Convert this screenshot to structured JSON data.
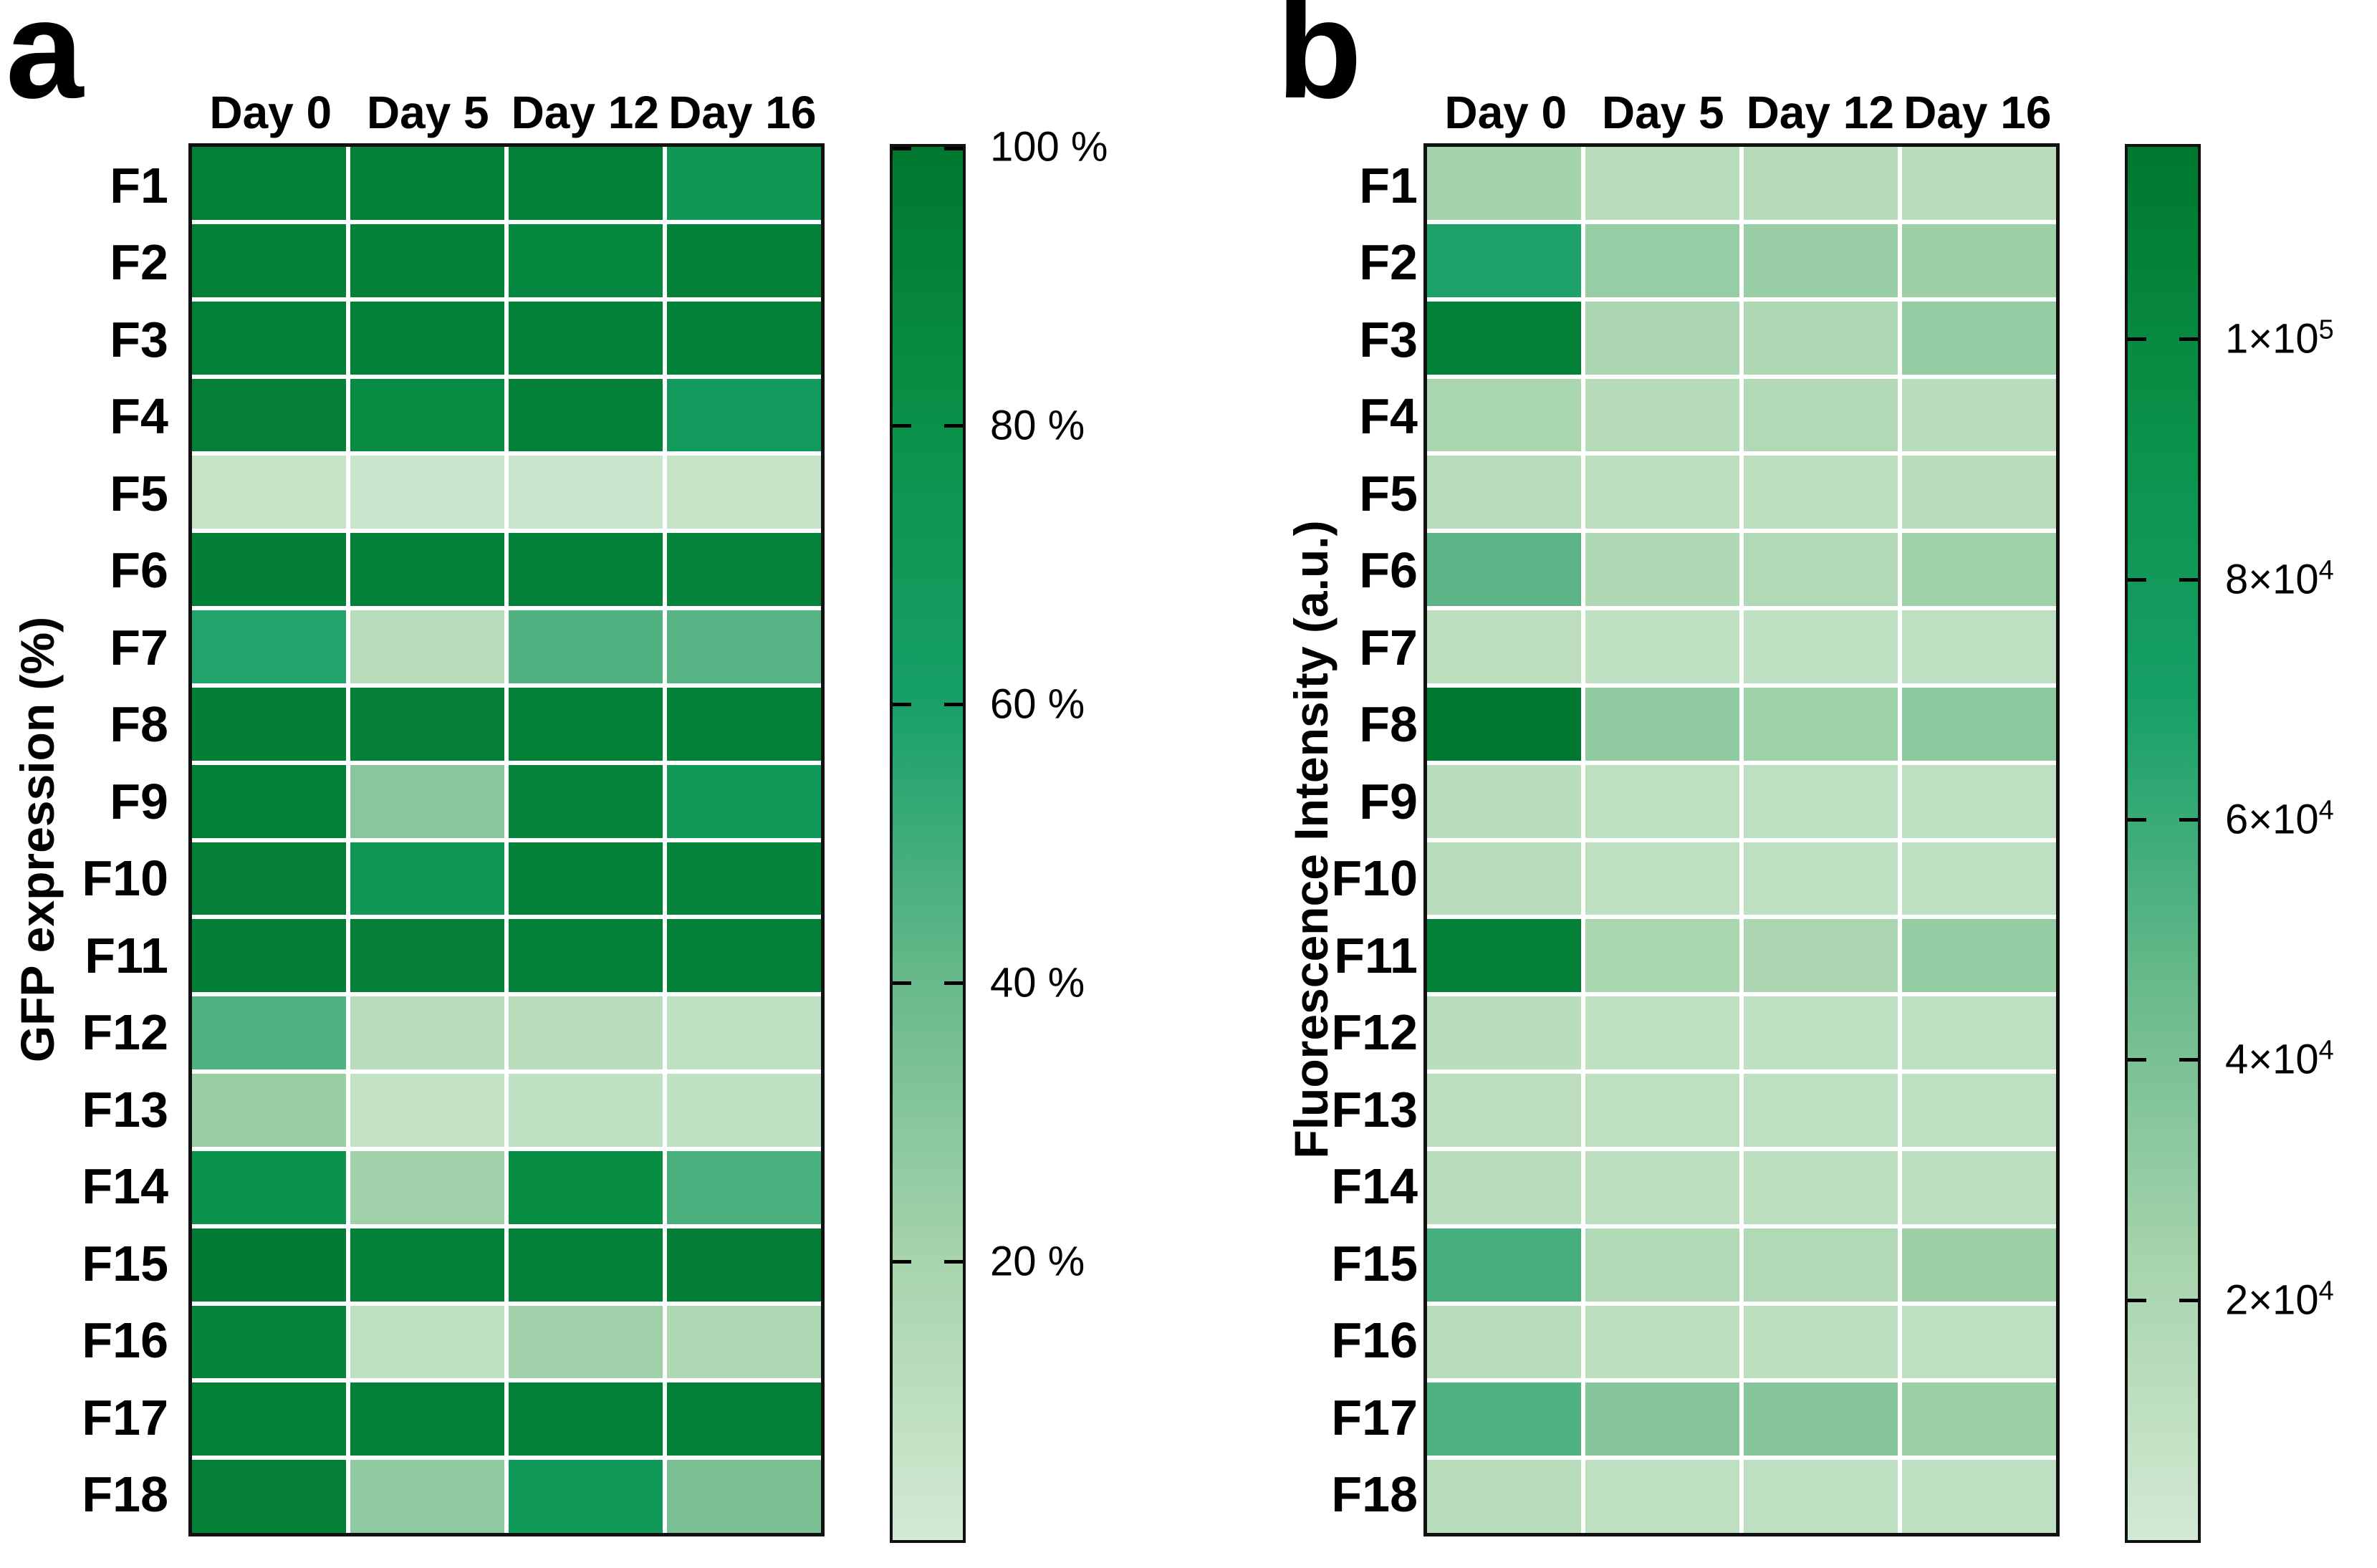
{
  "page": {
    "background": "#ffffff"
  },
  "colormap": {
    "description": "light-to-dark green heatmap scale",
    "stops": [
      [
        0.0,
        "#d3e9d3"
      ],
      [
        0.2,
        "#a7d4ad"
      ],
      [
        0.4,
        "#68b98b"
      ],
      [
        0.6,
        "#17a068"
      ],
      [
        0.8,
        "#0a9149"
      ],
      [
        1.0,
        "#00772f"
      ]
    ],
    "border_color": "#111111",
    "grid_gap_color": "#ffffff"
  },
  "chart_data": [
    {
      "type": "heatmap",
      "panel_label": "a",
      "ylabel": "GFP expression (%)",
      "columns": [
        "Day 0",
        "Day 5",
        "Day 12",
        "Day 16"
      ],
      "rows": [
        "F1",
        "F2",
        "F3",
        "F4",
        "F5",
        "F6",
        "F7",
        "F8",
        "F9",
        "F10",
        "F11",
        "F12",
        "F13",
        "F14",
        "F15",
        "F16",
        "F17",
        "F18"
      ],
      "values": [
        [
          93,
          92,
          93,
          72
        ],
        [
          93,
          93,
          88,
          92
        ],
        [
          93,
          92,
          92,
          92
        ],
        [
          94,
          84,
          92,
          68
        ],
        [
          6,
          5,
          5,
          6
        ],
        [
          95,
          93,
          92,
          91
        ],
        [
          57,
          12,
          46,
          44
        ],
        [
          95,
          94,
          93,
          92
        ],
        [
          93,
          30,
          91,
          70
        ],
        [
          94,
          72,
          92,
          90
        ],
        [
          95,
          94,
          93,
          93
        ],
        [
          46,
          12,
          12,
          9
        ],
        [
          24,
          7,
          8,
          8
        ],
        [
          78,
          22,
          84,
          48
        ],
        [
          96,
          92,
          92,
          95
        ],
        [
          90,
          9,
          22,
          17
        ],
        [
          92,
          92,
          93,
          93
        ],
        [
          94,
          28,
          70,
          34
        ]
      ],
      "vmin": 0,
      "vmax": 100,
      "colorbar_ticks": [
        {
          "base": "100 %",
          "sup": "",
          "value": 100
        },
        {
          "base": "80 %",
          "sup": "",
          "value": 80
        },
        {
          "base": "60 %",
          "sup": "",
          "value": 60
        },
        {
          "base": "40 %",
          "sup": "",
          "value": 40
        },
        {
          "base": "20 %",
          "sup": "",
          "value": 20
        }
      ],
      "legend_position": "right",
      "grid": "white gaps between cells"
    },
    {
      "type": "heatmap",
      "panel_label": "b",
      "ylabel": "Fluorescence Intensity (a.u.)",
      "columns": [
        "Day 0",
        "Day 5",
        "Day 12",
        "Day 16"
      ],
      "rows": [
        "F1",
        "F2",
        "F3",
        "F4",
        "F5",
        "F6",
        "F7",
        "F8",
        "F9",
        "F10",
        "F11",
        "F12",
        "F13",
        "F14",
        "F15",
        "F16",
        "F17",
        "F18"
      ],
      "values": [
        [
          24000,
          14000,
          15000,
          13000
        ],
        [
          68000,
          29000,
          28000,
          27000
        ],
        [
          107000,
          21000,
          20000,
          30000
        ],
        [
          22000,
          16000,
          18000,
          13000
        ],
        [
          14000,
          12000,
          12000,
          13000
        ],
        [
          50000,
          19000,
          18000,
          26000
        ],
        [
          12000,
          10000,
          10000,
          11000
        ],
        [
          114000,
          32000,
          26000,
          33000
        ],
        [
          13000,
          11000,
          11000,
          11000
        ],
        [
          14000,
          11000,
          11000,
          11000
        ],
        [
          108000,
          22000,
          21000,
          30000
        ],
        [
          13000,
          10000,
          10000,
          11000
        ],
        [
          12000,
          11000,
          11000,
          11000
        ],
        [
          14000,
          12000,
          12000,
          12000
        ],
        [
          56000,
          17000,
          18000,
          27000
        ],
        [
          14000,
          12000,
          12000,
          11000
        ],
        [
          53000,
          35000,
          35000,
          27000
        ],
        [
          14000,
          11000,
          11000,
          11000
        ]
      ],
      "vmin": 0,
      "vmax": 116000,
      "colorbar_ticks": [
        {
          "base": "1×10",
          "sup": "5",
          "value": 100000
        },
        {
          "base": "8×10",
          "sup": "4",
          "value": 80000
        },
        {
          "base": "6×10",
          "sup": "4",
          "value": 60000
        },
        {
          "base": "4×10",
          "sup": "4",
          "value": 40000
        },
        {
          "base": "2×10",
          "sup": "4",
          "value": 20000
        }
      ],
      "legend_position": "right",
      "grid": "white gaps between cells"
    }
  ]
}
